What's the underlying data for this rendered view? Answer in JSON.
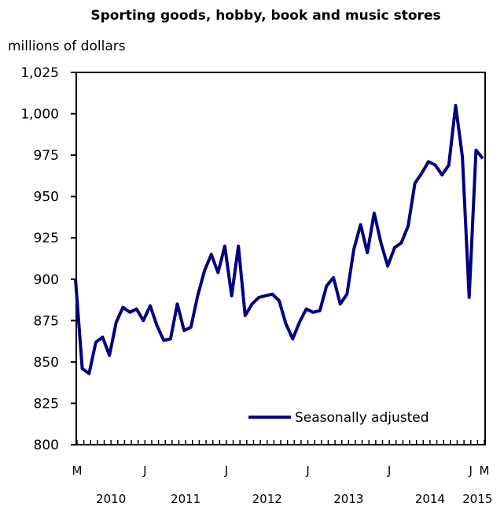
{
  "chart_data": {
    "type": "line",
    "title": "Sporting goods, hobby, book and music stores",
    "ylabel": "millions of dollars",
    "xlabel": "",
    "ylim": [
      800,
      1025
    ],
    "yticks": [
      800,
      825,
      850,
      875,
      900,
      925,
      950,
      975,
      1000,
      1025
    ],
    "ytick_labels": [
      "800",
      "825",
      "850",
      "875",
      "900",
      "925",
      "950",
      "975",
      "1,000",
      "1,025"
    ],
    "x_month_labels": [
      {
        "label": "M",
        "index": 0
      },
      {
        "label": "J",
        "index": 10
      },
      {
        "label": "J",
        "index": 22
      },
      {
        "label": "J",
        "index": 34
      },
      {
        "label": "J",
        "index": 46
      },
      {
        "label": "J",
        "index": 58
      },
      {
        "label": "M",
        "index": 60
      }
    ],
    "year_labels": [
      {
        "label": "2010",
        "index": 5
      },
      {
        "label": "2011",
        "index": 16
      },
      {
        "label": "2012",
        "index": 28
      },
      {
        "label": "2013",
        "index": 40
      },
      {
        "label": "2014",
        "index": 52
      },
      {
        "label": "2015",
        "index": 59
      }
    ],
    "legend_position": "bottom-right",
    "series": [
      {
        "name": "Seasonally adjusted",
        "color": "#000080",
        "start": "2010-03",
        "values": [
          900,
          846,
          843,
          862,
          865,
          854,
          874,
          883,
          880,
          882,
          875,
          884,
          872,
          863,
          864,
          885,
          869,
          871,
          890,
          905,
          915,
          904,
          920,
          890,
          920,
          878,
          885,
          889,
          890,
          891,
          887,
          873,
          864,
          874,
          882,
          880,
          881,
          896,
          901,
          885,
          891,
          918,
          933,
          916,
          940,
          922,
          908,
          919,
          922,
          932,
          958,
          964,
          971,
          969,
          963,
          969,
          1005,
          974,
          889,
          978,
          973
        ]
      }
    ]
  }
}
